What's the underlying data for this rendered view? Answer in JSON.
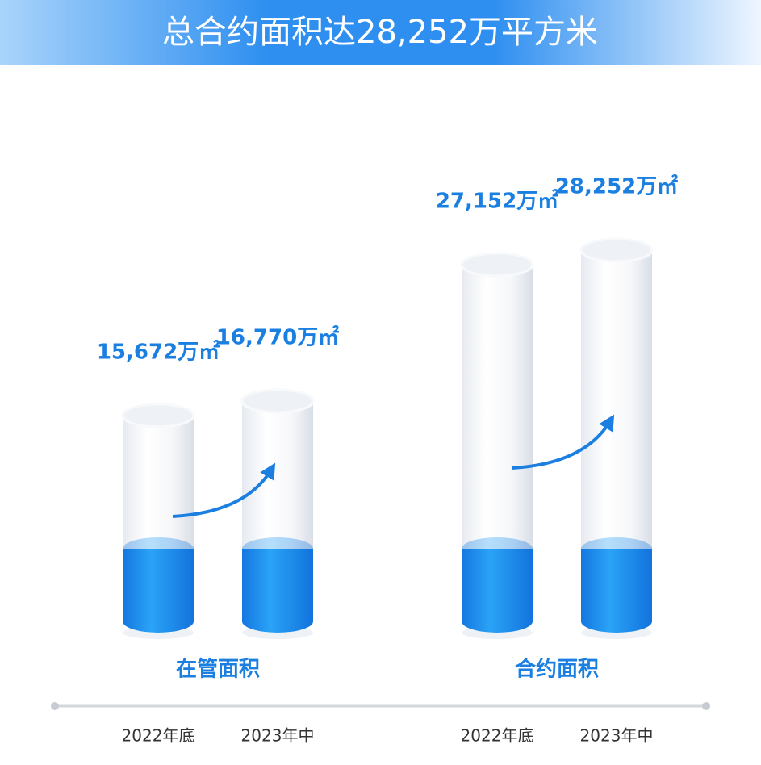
{
  "chart_data": {
    "type": "bar",
    "title": "总合约面积达28,252万平方米",
    "color": "#1a7fe0",
    "groups": [
      {
        "name": "在管面积",
        "categories": [
          "2022年底",
          "2023年中"
        ],
        "values": [
          15672,
          16770
        ],
        "value_labels": [
          "15,672万㎡",
          "16,770万㎡"
        ]
      },
      {
        "name": "合约面积",
        "categories": [
          "2022年底",
          "2023年中"
        ],
        "values": [
          27152,
          28252
        ],
        "value_labels": [
          "27,152万㎡",
          "28,252万㎡"
        ]
      }
    ]
  }
}
